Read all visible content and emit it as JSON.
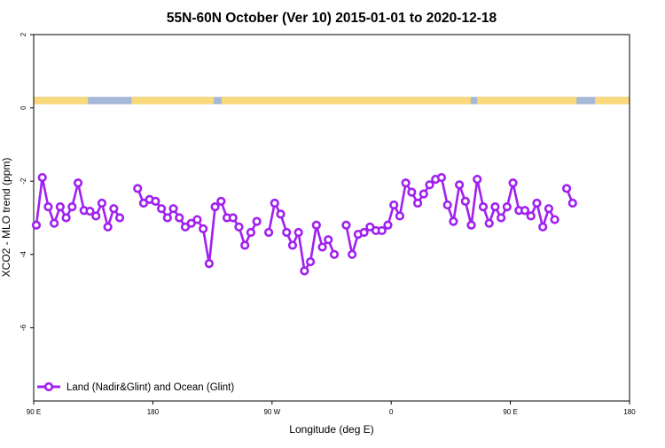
{
  "chart_data": {
    "type": "line",
    "title": "55N-60N October (Ver 10)   2015-01-01 to 2020-12-18",
    "xlabel": "Longitude (deg E)",
    "ylabel": "XCO2 - MLO trend (ppm)",
    "xlim": [
      90,
      450
    ],
    "ylim": [
      -8,
      2
    ],
    "x_ticks": [
      {
        "value": 90,
        "label": "90 E"
      },
      {
        "value": 180,
        "label": "180"
      },
      {
        "value": 270,
        "label": "90 W"
      },
      {
        "value": 360,
        "label": "0"
      },
      {
        "value": 450,
        "label": "90 E"
      }
    ],
    "x_ticks_far": [
      {
        "value": 540,
        "label": "180"
      }
    ],
    "y_ticks": [
      {
        "value": 2,
        "label": "2"
      },
      {
        "value": 0,
        "label": "0"
      },
      {
        "value": -2,
        "label": "-2"
      },
      {
        "value": -4,
        "label": "-4"
      },
      {
        "value": -6,
        "label": "-6"
      }
    ],
    "grid": false,
    "legend": {
      "position": "bottom-left"
    },
    "land_ocean_band": {
      "y_range": [
        0.1,
        0.3
      ],
      "land_color": "#fad97a",
      "ocean_color": "#a6b8d8",
      "land_intervals": [
        [
          90,
          131
        ],
        [
          164,
          226
        ],
        [
          232,
          420
        ],
        [
          425,
          500
        ],
        [
          514,
          540
        ]
      ]
    },
    "series": [
      {
        "name": "Land (Nadir&Glint) and Ocean (Glint)",
        "color": "#a020f0",
        "segments": [
          [
            [
              92,
              -3.2
            ],
            [
              96.5,
              -1.9
            ],
            [
              101,
              -2.7
            ],
            [
              105.5,
              -3.15
            ],
            [
              110,
              -2.7
            ],
            [
              114.5,
              -3.0
            ],
            [
              119,
              -2.7
            ],
            [
              123.5,
              -2.05
            ],
            [
              128,
              -2.8
            ],
            [
              132.5,
              -2.82
            ],
            [
              137,
              -2.95
            ],
            [
              141.5,
              -2.6
            ],
            [
              146,
              -3.25
            ],
            [
              150.5,
              -2.75
            ],
            [
              155,
              -3.0
            ]
          ],
          [
            [
              168.5,
              -2.2
            ],
            [
              173,
              -2.6
            ],
            [
              177.5,
              -2.5
            ],
            [
              182,
              -2.55
            ],
            [
              186.5,
              -2.75
            ],
            [
              191,
              -3.0
            ],
            [
              195.5,
              -2.75
            ],
            [
              200,
              -3.0
            ],
            [
              204.5,
              -3.25
            ],
            [
              209,
              -3.15
            ],
            [
              213.5,
              -3.05
            ],
            [
              218,
              -3.3
            ],
            [
              222.5,
              -4.25
            ],
            [
              227,
              -2.7
            ],
            [
              231.5,
              -2.55
            ],
            [
              236,
              -3.0
            ],
            [
              240.5,
              -3.0
            ],
            [
              245,
              -3.25
            ],
            [
              249.5,
              -3.75
            ],
            [
              254,
              -3.4
            ],
            [
              258.5,
              -3.1
            ]
          ],
          [
            [
              267.5,
              -3.4
            ],
            [
              272,
              -2.6
            ],
            [
              276.5,
              -2.9
            ],
            [
              281,
              -3.4
            ],
            [
              285.5,
              -3.75
            ],
            [
              290,
              -3.4
            ],
            [
              294.5,
              -4.45
            ],
            [
              299,
              -4.2
            ],
            [
              303.5,
              -3.2
            ],
            [
              308,
              -3.8
            ],
            [
              312.5,
              -3.6
            ],
            [
              317,
              -4.0
            ]
          ],
          [
            [
              326,
              -3.2
            ],
            [
              330.5,
              -4.0
            ],
            [
              335,
              -3.45
            ],
            [
              339.5,
              -3.4
            ],
            [
              344,
              -3.25
            ],
            [
              348.5,
              -3.35
            ],
            [
              353,
              -3.35
            ],
            [
              357.5,
              -3.2
            ],
            [
              362,
              -2.65
            ],
            [
              366.5,
              -2.95
            ],
            [
              371,
              -2.05
            ],
            [
              375.5,
              -2.3
            ],
            [
              380,
              -2.6
            ],
            [
              384.5,
              -2.35
            ],
            [
              389,
              -2.1
            ],
            [
              393.5,
              -1.95
            ],
            [
              398,
              -1.9
            ],
            [
              402.5,
              -2.65
            ],
            [
              407,
              -3.1
            ],
            [
              411.5,
              -2.1
            ],
            [
              416,
              -2.55
            ],
            [
              420.5,
              -3.2
            ],
            [
              425,
              -1.95
            ],
            [
              429.5,
              -2.7
            ],
            [
              434,
              -3.15
            ],
            [
              438.5,
              -2.7
            ],
            [
              443,
              -3.0
            ],
            [
              447.5,
              -2.7
            ],
            [
              452,
              -2.05
            ],
            [
              456.5,
              -2.8
            ],
            [
              461,
              -2.8
            ],
            [
              465.5,
              -2.95
            ],
            [
              470,
              -2.6
            ],
            [
              474.5,
              -3.25
            ],
            [
              479,
              -2.75
            ],
            [
              483.5,
              -3.05
            ]
          ],
          [
            [
              492.5,
              -2.2
            ],
            [
              497,
              -2.6
            ]
          ]
        ]
      }
    ]
  }
}
